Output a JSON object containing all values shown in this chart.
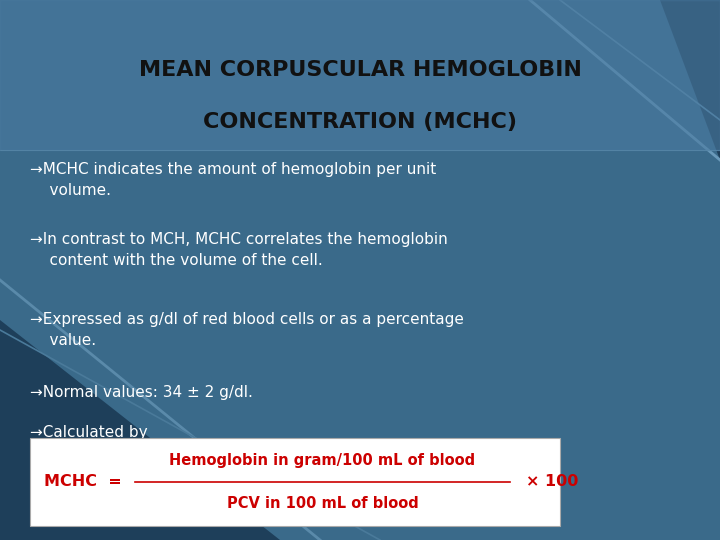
{
  "title_line1": "MEAN CORPUSCULAR HEMOGLOBIN",
  "title_line2": "CONCENTRATION (MCHC)",
  "title_color": "#111111",
  "title_fontsize": 16,
  "bullet_color": "#ffffff",
  "bullet_fontsize": 11,
  "bullets": [
    "→MCHC indicates the amount of hemoglobin per unit\n    volume.",
    "→In contrast to MCH, MCHC correlates the hemoglobin\n    content with the volume of the cell.",
    "→Expressed as g/dl of red blood cells or as a percentage\n    value.",
    "→Normal values: 34 ± 2 g/dl.",
    "→Calculated by"
  ],
  "formula_text_color": "#cc0000",
  "formula_numerator": "Hemoglobin in gram/100 mL of blood",
  "formula_denominator": "PCV in 100 mL of blood",
  "formula_prefix": "MCHC  =",
  "formula_suffix": "× 100",
  "bg_color": "#3a6a8a",
  "bg_dark": "#1e3f5a",
  "title_bg_color": "#4a7aa0",
  "diagonal_light": "#5a8aaa",
  "diagonal_dark": "#2a5070"
}
